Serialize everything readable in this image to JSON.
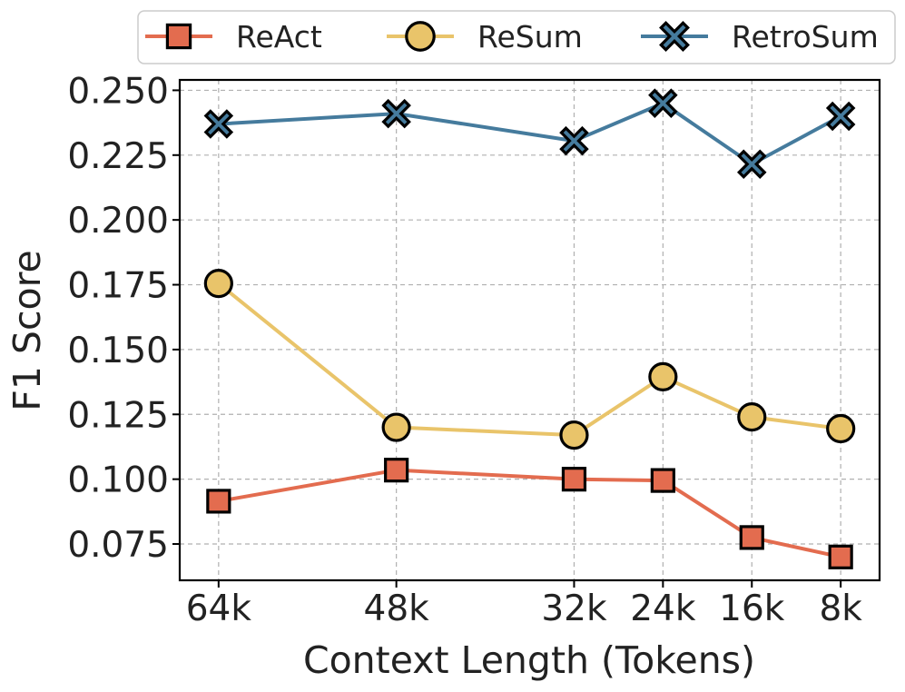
{
  "chart_data": {
    "type": "line",
    "title": "",
    "xlabel": "Context Length (Tokens)",
    "ylabel": "F1 Score",
    "x": [
      64,
      48,
      32,
      24,
      16,
      8
    ],
    "x_tick_labels": [
      "64k",
      "48k",
      "32k",
      "24k",
      "16k",
      "8k"
    ],
    "x_axis_reversed": true,
    "xlim": [
      67.5,
      4.5
    ],
    "ylim": [
      0.061,
      0.254
    ],
    "y_ticks": [
      0.075,
      0.1,
      0.125,
      0.15,
      0.175,
      0.2,
      0.225,
      0.25
    ],
    "y_tick_labels": [
      "0.075",
      "0.100",
      "0.125",
      "0.150",
      "0.175",
      "0.200",
      "0.225",
      "0.250"
    ],
    "grid": true,
    "legend_position": "top, outside plot, horizontal",
    "series": [
      {
        "name": "ReAct",
        "color": "#e36c4f",
        "marker": "square",
        "values": [
          0.0915,
          0.1035,
          0.1,
          0.0995,
          0.0775,
          0.07
        ]
      },
      {
        "name": "ReSum",
        "color": "#e9c46a",
        "marker": "circle",
        "values": [
          0.1755,
          0.12,
          0.117,
          0.1395,
          0.124,
          0.1195
        ]
      },
      {
        "name": "RetroSum",
        "color": "#457b9d",
        "marker": "x",
        "values": [
          0.237,
          0.241,
          0.2305,
          0.245,
          0.2215,
          0.24
        ]
      }
    ]
  }
}
